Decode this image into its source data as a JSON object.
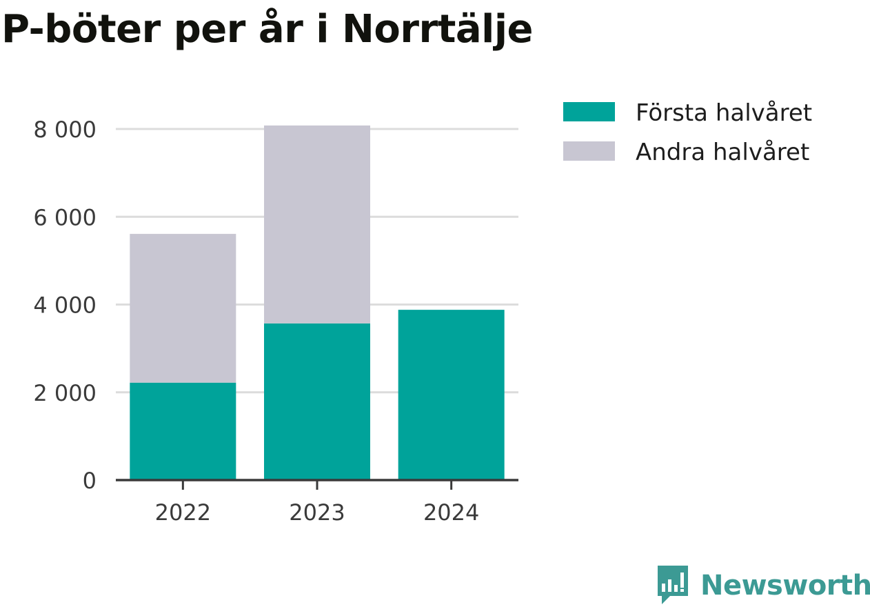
{
  "chart_data": {
    "type": "bar",
    "stacked": true,
    "title": "P-böter per år i Norrtälje",
    "categories": [
      "2022",
      "2023",
      "2024"
    ],
    "series": [
      {
        "name": "Första halvåret",
        "color": "#00a39a",
        "values": [
          2220,
          3570,
          3880
        ]
      },
      {
        "name": "Andra halvåret",
        "color": "#c8c6d2",
        "values": [
          3390,
          4510,
          0
        ]
      }
    ],
    "y_ticks": [
      0,
      2000,
      4000,
      6000,
      8000
    ],
    "y_tick_labels": [
      "0",
      "2 000",
      "4 000",
      "6 000",
      "8 000"
    ],
    "ylim": [
      0,
      8000
    ],
    "xlabel": "",
    "ylabel": "",
    "grid": true,
    "legend_position": "top-right"
  },
  "branding": {
    "logo_text": "Newsworthy",
    "logo_color": "#3c9a94",
    "logo_icon": "chart-speech-bubble-icon"
  }
}
